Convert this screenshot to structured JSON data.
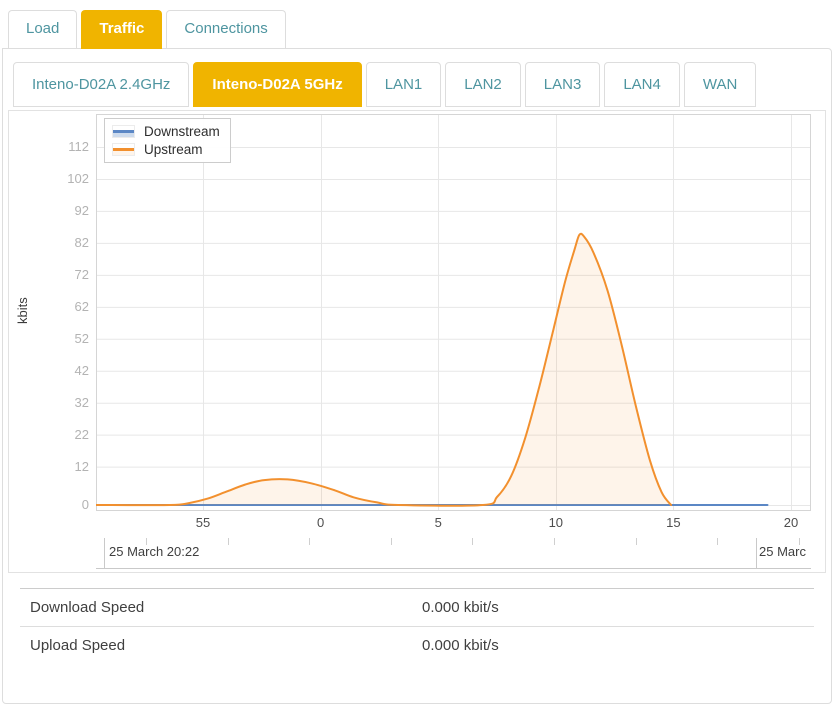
{
  "tabs": [
    {
      "label": "Load",
      "active": false
    },
    {
      "label": "Traffic",
      "active": true
    },
    {
      "label": "Connections",
      "active": false
    }
  ],
  "subtabs": [
    {
      "label": "Inteno-D02A 2.4GHz",
      "active": false
    },
    {
      "label": "Inteno-D02A 5GHz",
      "active": true
    },
    {
      "label": "LAN1",
      "active": false
    },
    {
      "label": "LAN2",
      "active": false
    },
    {
      "label": "LAN3",
      "active": false
    },
    {
      "label": "LAN4",
      "active": false
    },
    {
      "label": "WAN",
      "active": false
    }
  ],
  "colors": {
    "active_tab": "#f0b400",
    "tab_text": "#4e95a0",
    "downstream_line": "#5b87c5",
    "downstream_fill": "rgba(91,135,197,0.30)",
    "upstream_line": "#f2902e",
    "upstream_fill": "rgba(242,144,46,0.10)",
    "grid": "#e7e7e7",
    "plot_border": "#d5d5d5"
  },
  "chart_data": {
    "type": "area",
    "title": "",
    "xlabel": "",
    "ylabel": "kbits",
    "grid": true,
    "legend_position": "top-left",
    "y_ticks": [
      0,
      12,
      22,
      32,
      42,
      52,
      62,
      72,
      82,
      92,
      102,
      112
    ],
    "ylim": [
      0,
      118
    ],
    "x_domain_minutes": [
      -9.55,
      20.85
    ],
    "x_ticks": [
      {
        "t": -5,
        "label": "55"
      },
      {
        "t": 0,
        "label": "0"
      },
      {
        "t": 5,
        "label": "5"
      },
      {
        "t": 10,
        "label": "10"
      },
      {
        "t": 15,
        "label": "15"
      },
      {
        "t": 20,
        "label": "20"
      }
    ],
    "time_axis_labels": [
      {
        "label": "25 March 20:22",
        "position": "left"
      },
      {
        "label": "25 Marc",
        "position": "right"
      }
    ],
    "legend": [
      {
        "name": "Downstream"
      },
      {
        "name": "Upstream"
      }
    ],
    "series": [
      {
        "name": "Downstream",
        "unit": "kbits",
        "points": [
          [
            -9.55,
            0
          ],
          [
            19.0,
            0
          ]
        ]
      },
      {
        "name": "Upstream",
        "unit": "kbits",
        "points": [
          [
            -9.55,
            0
          ],
          [
            -6.4,
            0
          ],
          [
            -5.6,
            0.6
          ],
          [
            -4.8,
            2
          ],
          [
            -4.0,
            4.2
          ],
          [
            -3.2,
            6.4
          ],
          [
            -2.4,
            7.8
          ],
          [
            -1.4,
            8
          ],
          [
            -0.4,
            6.8
          ],
          [
            0.6,
            4.6
          ],
          [
            1.4,
            2.4
          ],
          [
            2.4,
            0.8
          ],
          [
            3.3,
            0
          ],
          [
            6.9,
            0
          ],
          [
            7.5,
            2.5
          ],
          [
            8.1,
            9
          ],
          [
            8.7,
            21
          ],
          [
            9.3,
            37
          ],
          [
            9.9,
            55
          ],
          [
            10.4,
            70
          ],
          [
            10.8,
            80
          ],
          [
            11.0,
            84.5
          ],
          [
            11.2,
            84
          ],
          [
            11.6,
            79
          ],
          [
            12.2,
            67
          ],
          [
            12.8,
            50
          ],
          [
            13.4,
            31
          ],
          [
            14.0,
            14
          ],
          [
            14.5,
            4
          ],
          [
            14.9,
            0
          ]
        ]
      }
    ]
  },
  "table": {
    "rows": [
      {
        "label": "Download Speed",
        "value": "0.000 kbit/s"
      },
      {
        "label": "Upload Speed",
        "value": "0.000 kbit/s"
      }
    ]
  }
}
